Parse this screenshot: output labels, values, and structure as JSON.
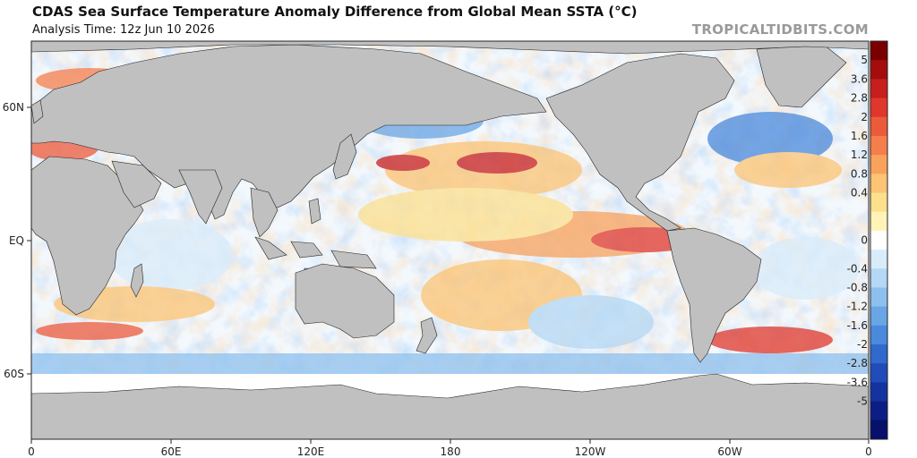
{
  "header": {
    "title": "CDAS Sea Surface Temperature Anomaly Difference from Global Mean SSTA (°C)",
    "analysis_time": "Analysis Time: 12z Jun 10 2026",
    "watermark": "TROPICALTIDBITS.COM"
  },
  "map": {
    "projection": "equirectangular",
    "lon_range": [
      0,
      360
    ],
    "lat_range": [
      -80,
      80
    ],
    "land_color": "#c0c0c0",
    "ocean_neutral_color": "#ffffff",
    "latitude_labels": [
      "60N",
      "EQ",
      "60S"
    ],
    "longitude_labels": [
      "0",
      "60E",
      "120E",
      "180",
      "120W",
      "60W",
      "0"
    ]
  },
  "colorbar": {
    "unit": "°C",
    "labels": [
      "5",
      "3.6",
      "2.8",
      "2",
      "1.6",
      "1.2",
      "0.8",
      "0.4",
      "0",
      "-0.4",
      "-0.8",
      "-1.2",
      "-1.6",
      "-2",
      "-2.8",
      "-3.6",
      "-5"
    ],
    "colors": [
      "#7a0000",
      "#a50d0d",
      "#c81e1e",
      "#e0372c",
      "#ec5a3c",
      "#f47e4c",
      "#f8a25e",
      "#fcc474",
      "#fde08e",
      "#fff3b8",
      "#ffffff",
      "#d9ecfa",
      "#b4d8f5",
      "#8ec0ee",
      "#6aa6e6",
      "#4a89dc",
      "#3169cc",
      "#1f4cb8",
      "#1433a0",
      "#0c1e84",
      "#07106a"
    ]
  }
}
